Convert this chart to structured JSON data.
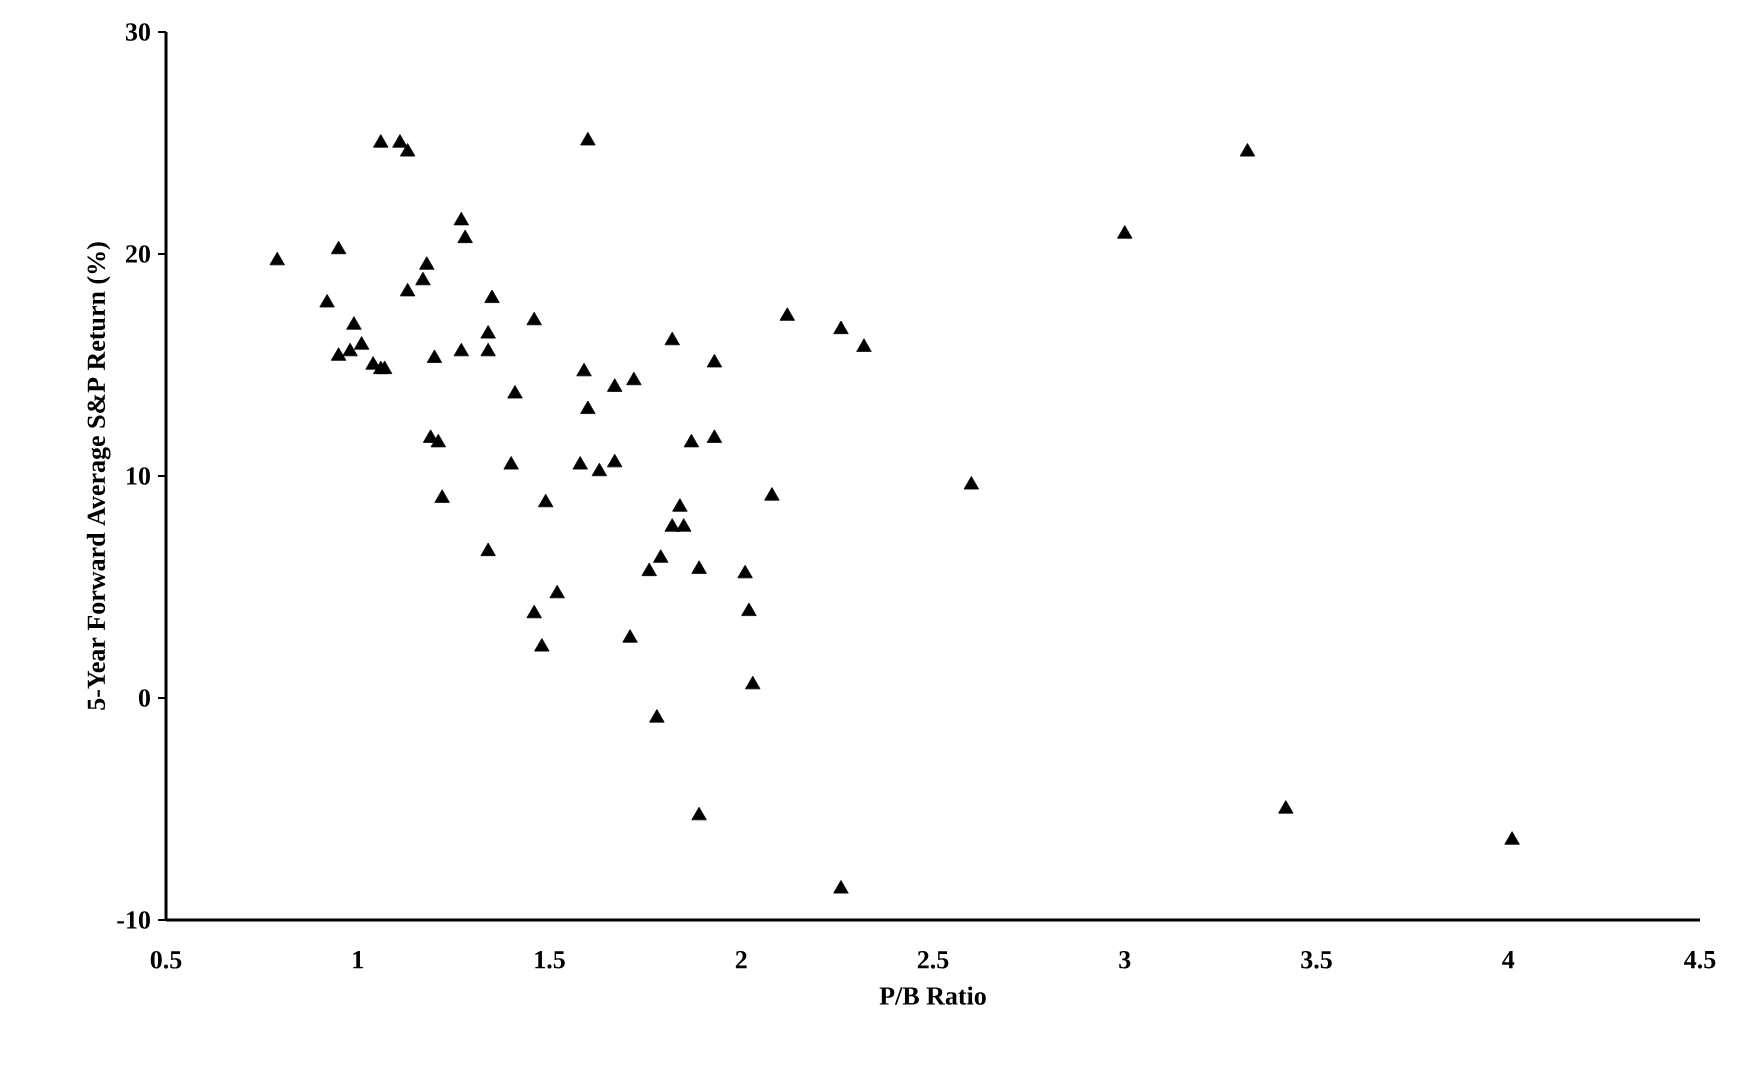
{
  "chart_data": {
    "type": "scatter",
    "xlabel": "P/B Ratio",
    "ylabel": "5-Year Forward Average S&P Return (%)",
    "marker": "triangle",
    "grid": false,
    "xlim": [
      0.5,
      4.5
    ],
    "xticks": [
      0.5,
      1,
      1.5,
      2,
      2.5,
      3,
      3.5,
      4,
      4.5
    ],
    "ylim": [
      -10,
      30
    ],
    "yticks": [
      -10,
      0,
      10,
      20,
      30
    ],
    "series": [
      {
        "color": "#000000",
        "x": [
          0.79,
          0.95,
          0.92,
          0.99,
          0.95,
          0.98,
          1.01,
          1.04,
          1.06,
          1.07,
          1.06,
          1.11,
          1.13,
          1.13,
          1.17,
          1.18,
          1.27,
          1.28,
          1.2,
          1.27,
          1.34,
          1.34,
          1.19,
          1.21,
          1.22,
          1.34,
          1.35,
          1.46,
          1.41,
          1.4,
          1.46,
          1.48,
          1.52,
          1.49,
          1.6,
          1.59,
          1.6,
          1.58,
          1.63,
          1.67,
          1.67,
          1.72,
          1.71,
          1.78,
          1.76,
          1.79,
          1.82,
          1.82,
          1.84,
          1.85,
          1.87,
          1.89,
          1.93,
          1.93,
          1.89,
          2.01,
          2.02,
          2.03,
          2.08,
          2.26,
          2.12,
          2.26,
          2.32,
          2.6,
          3.0,
          3.32,
          3.42,
          4.01
        ],
        "values": [
          19.7,
          20.2,
          17.8,
          16.8,
          15.4,
          15.6,
          15.9,
          15.0,
          14.8,
          14.8,
          25.0,
          25.0,
          24.6,
          18.3,
          18.8,
          19.5,
          21.5,
          20.7,
          15.3,
          15.6,
          16.4,
          15.6,
          11.7,
          11.5,
          9.0,
          6.6,
          18.0,
          17.0,
          13.7,
          10.5,
          3.8,
          2.3,
          4.7,
          8.8,
          25.1,
          14.7,
          13.0,
          10.5,
          10.2,
          14.0,
          10.6,
          14.3,
          2.7,
          -0.9,
          5.7,
          6.3,
          16.1,
          7.7,
          8.6,
          7.7,
          11.5,
          -5.3,
          15.1,
          11.7,
          5.8,
          5.6,
          3.9,
          0.6,
          9.1,
          -8.6,
          17.2,
          16.6,
          15.8,
          9.6,
          20.9,
          24.6,
          -5.0,
          -6.4
        ]
      }
    ]
  }
}
